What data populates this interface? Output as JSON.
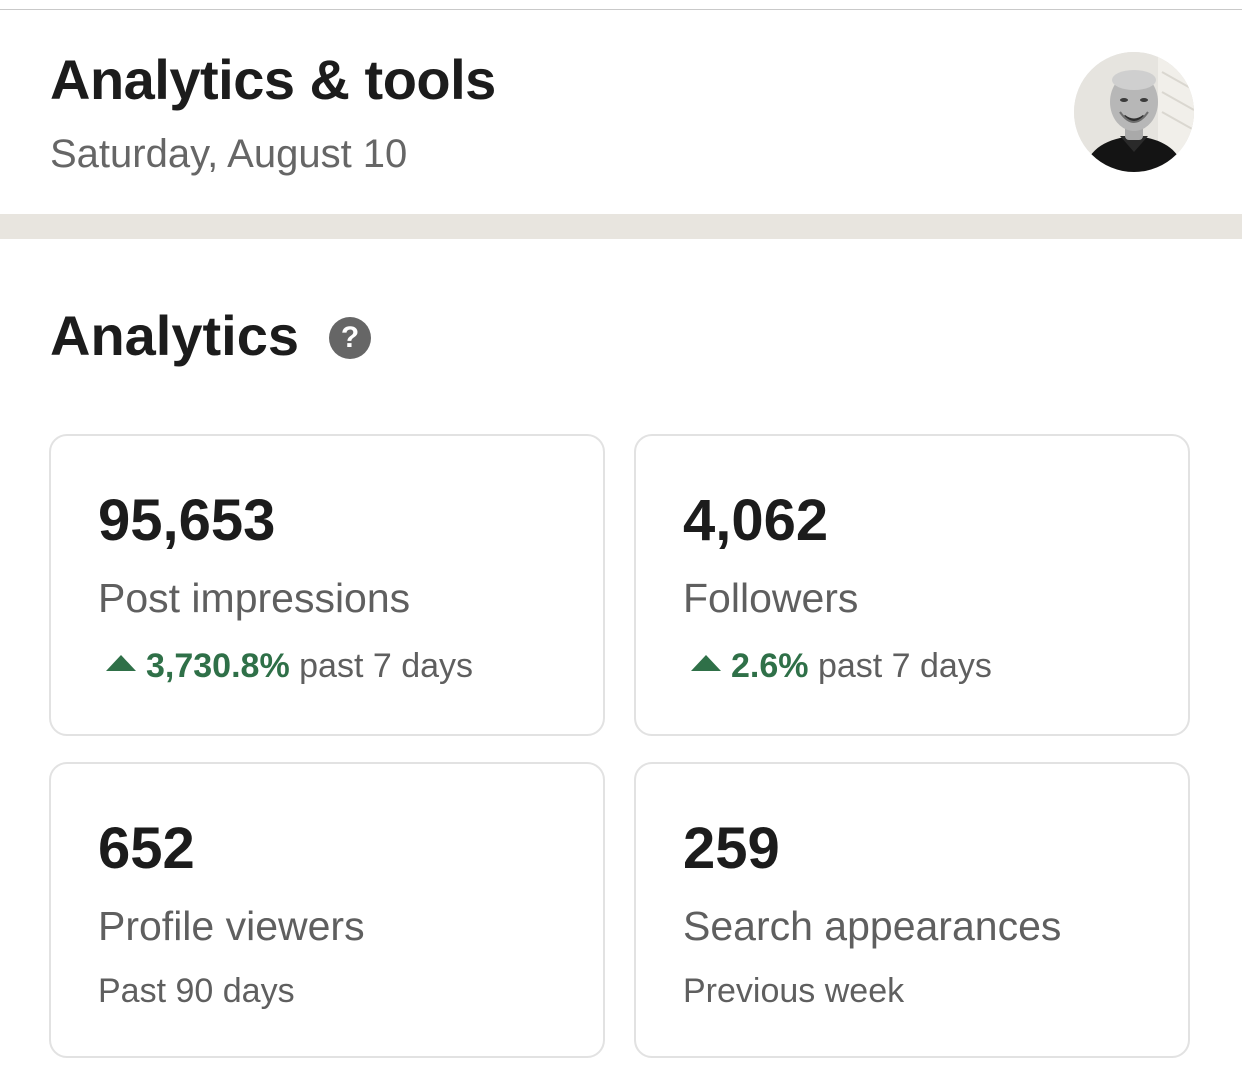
{
  "header": {
    "title": "Analytics & tools",
    "date": "Saturday, August 10",
    "avatar_icon": "user-avatar-photo"
  },
  "analytics": {
    "section_title": "Analytics",
    "help_icon": "question-circle-icon",
    "help_glyph": "?",
    "cards": [
      {
        "value": "95,653",
        "label": "Post impressions",
        "trend_icon": "triangle-up-icon",
        "trend_percent": "3,730.8%",
        "trend_period": "past 7 days"
      },
      {
        "value": "4,062",
        "label": "Followers",
        "trend_icon": "triangle-up-icon",
        "trend_percent": "2.6%",
        "trend_period": "past 7 days"
      },
      {
        "value": "652",
        "label": "Profile viewers",
        "subtext": "Past 90 days"
      },
      {
        "value": "259",
        "label": "Search appearances",
        "subtext": "Previous week"
      }
    ]
  },
  "colors": {
    "positive_trend": "#2f7048",
    "divider_band": "#e8e5df",
    "card_border": "#e2e2e2",
    "muted_text": "#666666"
  }
}
